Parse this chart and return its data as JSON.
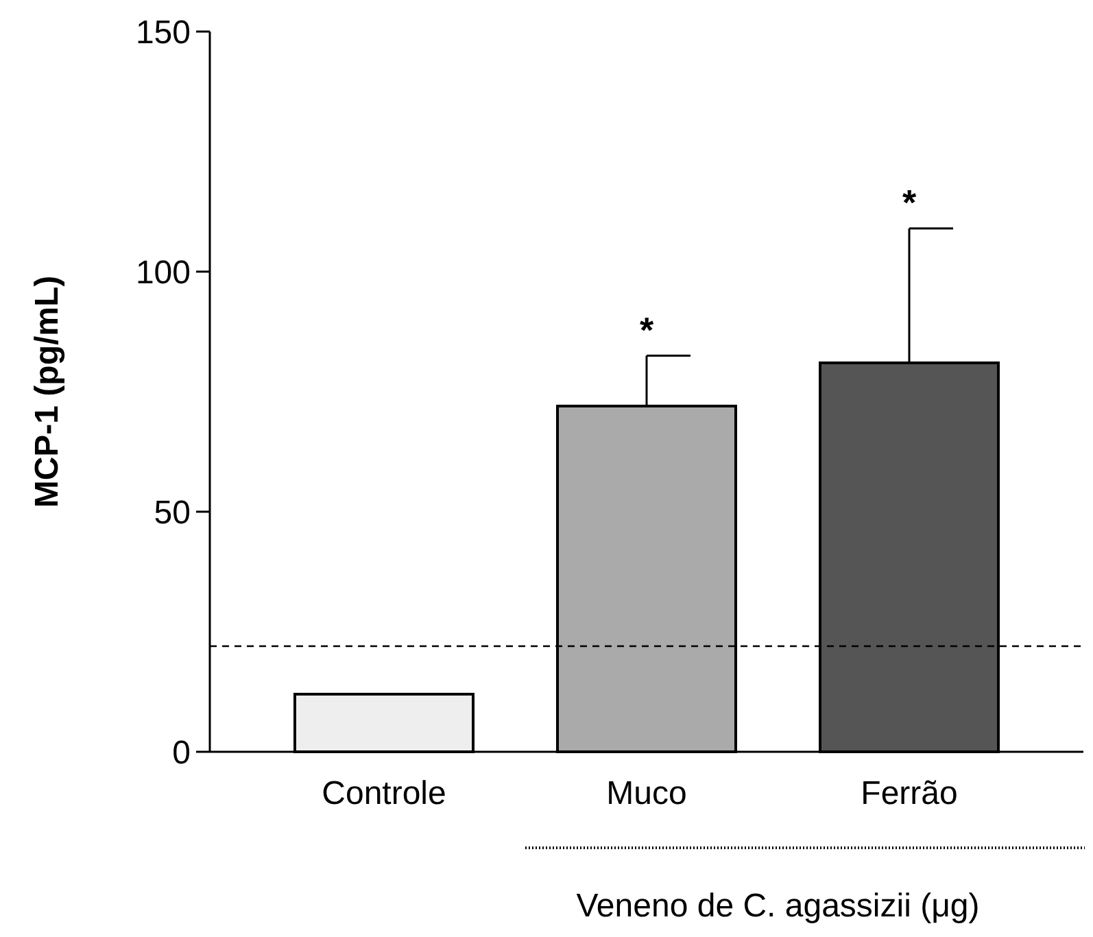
{
  "chart_data": {
    "type": "bar",
    "ylabel": "MCP-1 (pg/mL)",
    "xlabel": "Veneno de C. agassizii (μg)",
    "categories": [
      "Controle",
      "Muco",
      "Ferrão"
    ],
    "values": [
      12,
      72,
      81
    ],
    "errors": [
      null,
      10.5,
      28
    ],
    "colors": [
      "#eeeeee",
      "#aaaaaa",
      "#555555"
    ],
    "ylim": [
      0,
      150
    ],
    "yticks": [
      0,
      50,
      100,
      150
    ],
    "ref_lines": [
      {
        "axis": "y",
        "value": 22,
        "line_style": "dashed",
        "color": "#000000"
      }
    ],
    "annotations": [
      "*",
      "*"
    ],
    "grid": false
  }
}
